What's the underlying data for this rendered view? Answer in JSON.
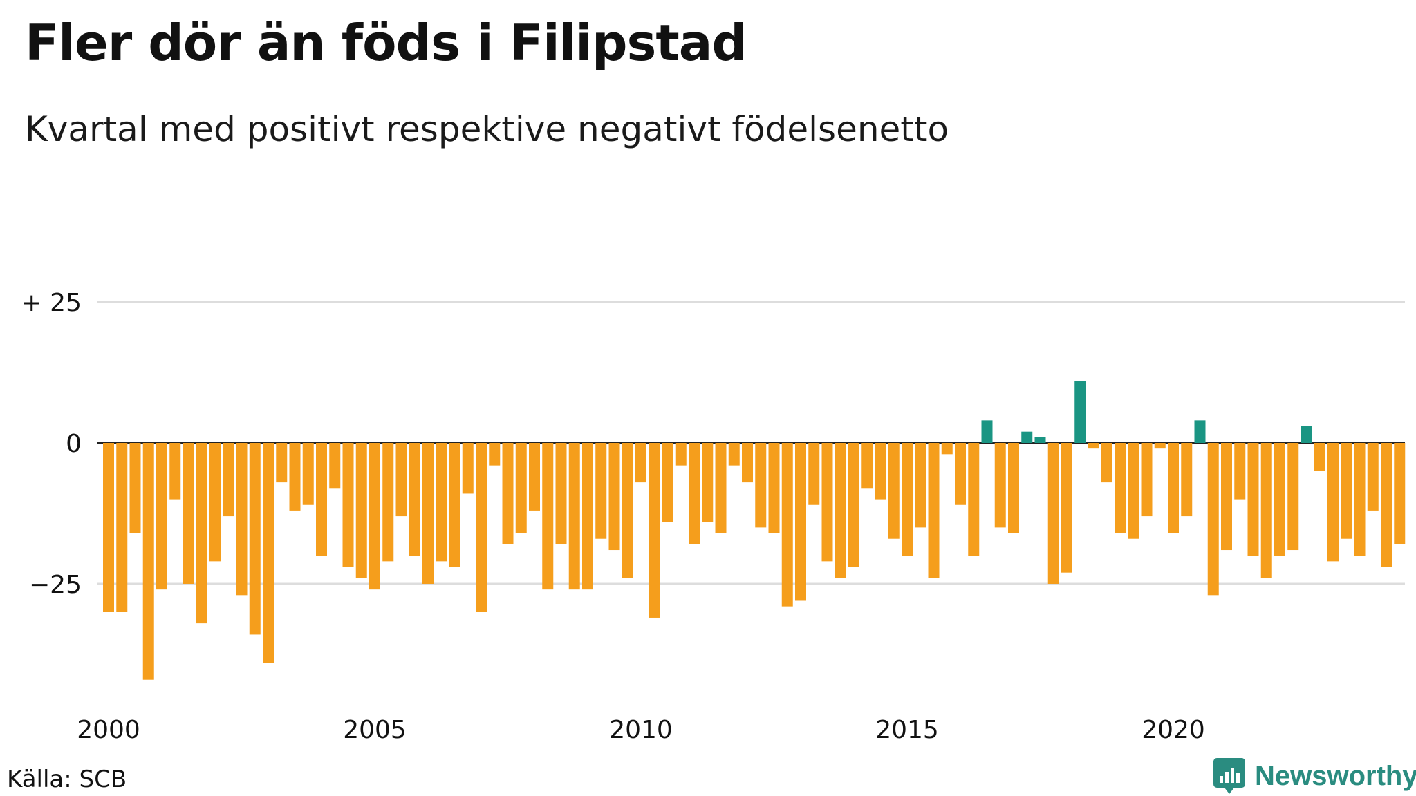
{
  "title": "Fler dör än föds i Filipstad",
  "subtitle": "Kvartal med positivt respektive negativt födelsenetto",
  "source": "Källa: SCB",
  "logo_text": "Newsworthy",
  "colors": {
    "negative": "#f59e1c",
    "positive": "#1a9583",
    "grid": "#dddddd",
    "zero": "#222222",
    "logo": "#2a8c80"
  },
  "chart_data": {
    "type": "bar",
    "x_start": "2000 Q1",
    "x_tick_labels": [
      "2000",
      "2005",
      "2010",
      "2015",
      "2020"
    ],
    "y_tick_labels": [
      "+ 25",
      "0",
      "−25"
    ],
    "y_ticks": [
      25,
      0,
      -25
    ],
    "ylim": [
      -42,
      25
    ],
    "grid": true,
    "values": [
      -30,
      -30,
      -16,
      -42,
      -26,
      -10,
      -25,
      -32,
      -21,
      -13,
      -27,
      -34,
      -39,
      -7,
      -12,
      -11,
      -20,
      -8,
      -22,
      -24,
      -26,
      -21,
      -13,
      -20,
      -25,
      -21,
      -22,
      -9,
      -30,
      -4,
      -18,
      -16,
      -12,
      -26,
      -18,
      -26,
      -26,
      -17,
      -19,
      -24,
      -7,
      -31,
      -14,
      -4,
      -18,
      -14,
      -16,
      -4,
      -7,
      -15,
      -16,
      -29,
      -28,
      -11,
      -21,
      -24,
      -22,
      -8,
      -10,
      -17,
      -20,
      -15,
      -24,
      -2,
      -11,
      -20,
      4,
      -15,
      -16,
      2,
      1,
      -25,
      -23,
      11,
      -1,
      -7,
      -16,
      -17,
      -13,
      -1,
      -16,
      -13,
      4,
      -27,
      -19,
      -10,
      -20,
      -24,
      -20,
      -19,
      3,
      -5,
      -21,
      -17,
      -20,
      -12,
      -22,
      -18
    ]
  }
}
